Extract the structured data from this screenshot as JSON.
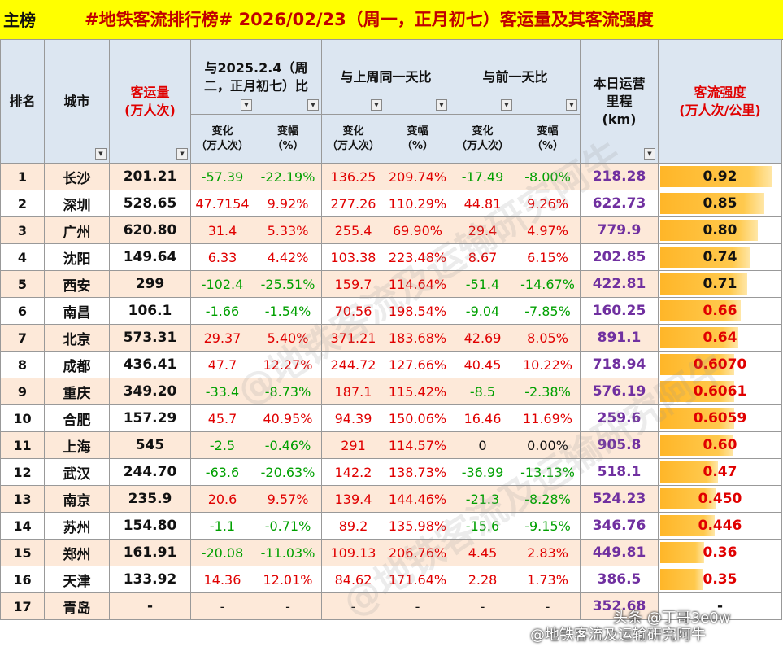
{
  "title_left": "主榜",
  "title_main": "#地铁客流排行榜# 2026/02/23（周一，正月初七）客运量及其客流强度",
  "headers": {
    "rank": "排名",
    "city": "城市",
    "volume": "客运量\n(万人次)",
    "grp_yoy": "与2025.2.4（周\n二，正月初七）比",
    "grp_wow": "与上周同一天比",
    "grp_dod": "与前一天比",
    "mileage": "本日运营\n里程\n(km)",
    "intensity": "客流强度\n(万人次/公里)",
    "change": "变化\n（万人次）",
    "pct": "变幅\n（%）"
  },
  "rows": [
    {
      "rank": "1",
      "city": "长沙",
      "volume": "201.21",
      "yoy_c": "-57.39",
      "yoy_p": "-22.19%",
      "wow_c": "136.25",
      "wow_p": "209.74%",
      "dod_c": "-17.49",
      "dod_p": "-8.00%",
      "mileage": "218.28",
      "intensity": "0.92",
      "ival": 0.92
    },
    {
      "rank": "2",
      "city": "深圳",
      "volume": "528.65",
      "yoy_c": "47.7154",
      "yoy_p": "9.92%",
      "wow_c": "277.26",
      "wow_p": "110.29%",
      "dod_c": "44.81",
      "dod_p": "9.26%",
      "mileage": "622.73",
      "intensity": "0.85",
      "ival": 0.85
    },
    {
      "rank": "3",
      "city": "广州",
      "volume": "620.80",
      "yoy_c": "31.4",
      "yoy_p": "5.33%",
      "wow_c": "255.4",
      "wow_p": "69.90%",
      "dod_c": "29.4",
      "dod_p": "4.97%",
      "mileage": "779.9",
      "intensity": "0.80",
      "ival": 0.8
    },
    {
      "rank": "4",
      "city": "沈阳",
      "volume": "149.64",
      "yoy_c": "6.33",
      "yoy_p": "4.42%",
      "wow_c": "103.38",
      "wow_p": "223.48%",
      "dod_c": "8.67",
      "dod_p": "6.15%",
      "mileage": "202.85",
      "intensity": "0.74",
      "ival": 0.74
    },
    {
      "rank": "5",
      "city": "西安",
      "volume": "299",
      "yoy_c": "-102.4",
      "yoy_p": "-25.51%",
      "wow_c": "159.7",
      "wow_p": "114.64%",
      "dod_c": "-51.4",
      "dod_p": "-14.67%",
      "mileage": "422.81",
      "intensity": "0.71",
      "ival": 0.71
    },
    {
      "rank": "6",
      "city": "南昌",
      "volume": "106.1",
      "yoy_c": "-1.66",
      "yoy_p": "-1.54%",
      "wow_c": "70.56",
      "wow_p": "198.54%",
      "dod_c": "-9.04",
      "dod_p": "-7.85%",
      "mileage": "160.25",
      "intensity": "0.66",
      "ival": 0.66
    },
    {
      "rank": "7",
      "city": "北京",
      "volume": "573.31",
      "yoy_c": "29.37",
      "yoy_p": "5.40%",
      "wow_c": "371.21",
      "wow_p": "183.68%",
      "dod_c": "42.69",
      "dod_p": "8.05%",
      "mileage": "891.1",
      "intensity": "0.64",
      "ival": 0.64
    },
    {
      "rank": "8",
      "city": "成都",
      "volume": "436.41",
      "yoy_c": "47.7",
      "yoy_p": "12.27%",
      "wow_c": "244.72",
      "wow_p": "127.66%",
      "dod_c": "40.45",
      "dod_p": "10.22%",
      "mileage": "718.94",
      "intensity": "0.6070",
      "ival": 0.607
    },
    {
      "rank": "9",
      "city": "重庆",
      "volume": "349.20",
      "yoy_c": "-33.4",
      "yoy_p": "-8.73%",
      "wow_c": "187.1",
      "wow_p": "115.42%",
      "dod_c": "-8.5",
      "dod_p": "-2.38%",
      "mileage": "576.19",
      "intensity": "0.6061",
      "ival": 0.6061
    },
    {
      "rank": "10",
      "city": "合肥",
      "volume": "157.29",
      "yoy_c": "45.7",
      "yoy_p": "40.95%",
      "wow_c": "94.39",
      "wow_p": "150.06%",
      "dod_c": "16.46",
      "dod_p": "11.69%",
      "mileage": "259.6",
      "intensity": "0.6059",
      "ival": 0.6059
    },
    {
      "rank": "11",
      "city": "上海",
      "volume": "545",
      "yoy_c": "-2.5",
      "yoy_p": "-0.46%",
      "wow_c": "291",
      "wow_p": "114.57%",
      "dod_c": "0",
      "dod_p": "0.00%",
      "mileage": "905.8",
      "intensity": "0.60",
      "ival": 0.6
    },
    {
      "rank": "12",
      "city": "武汉",
      "volume": "244.70",
      "yoy_c": "-63.6",
      "yoy_p": "-20.63%",
      "wow_c": "142.2",
      "wow_p": "138.73%",
      "dod_c": "-36.99",
      "dod_p": "-13.13%",
      "mileage": "518.1",
      "intensity": "0.47",
      "ival": 0.47
    },
    {
      "rank": "13",
      "city": "南京",
      "volume": "235.9",
      "yoy_c": "20.6",
      "yoy_p": "9.57%",
      "wow_c": "139.4",
      "wow_p": "144.46%",
      "dod_c": "-21.3",
      "dod_p": "-8.28%",
      "mileage": "524.23",
      "intensity": "0.450",
      "ival": 0.45
    },
    {
      "rank": "14",
      "city": "苏州",
      "volume": "154.80",
      "yoy_c": "-1.1",
      "yoy_p": "-0.71%",
      "wow_c": "89.2",
      "wow_p": "135.98%",
      "dod_c": "-15.6",
      "dod_p": "-9.15%",
      "mileage": "346.76",
      "intensity": "0.446",
      "ival": 0.446
    },
    {
      "rank": "15",
      "city": "郑州",
      "volume": "161.91",
      "yoy_c": "-20.08",
      "yoy_p": "-11.03%",
      "wow_c": "109.13",
      "wow_p": "206.76%",
      "dod_c": "4.45",
      "dod_p": "2.83%",
      "mileage": "449.81",
      "intensity": "0.36",
      "ival": 0.36
    },
    {
      "rank": "16",
      "city": "天津",
      "volume": "133.92",
      "yoy_c": "14.36",
      "yoy_p": "12.01%",
      "wow_c": "84.62",
      "wow_p": "171.64%",
      "dod_c": "2.28",
      "dod_p": "1.73%",
      "mileage": "386.5",
      "intensity": "0.35",
      "ival": 0.35
    },
    {
      "rank": "17",
      "city": "青岛",
      "volume": "-",
      "yoy_c": "-",
      "yoy_p": "-",
      "wow_c": "-",
      "wow_p": "-",
      "dod_c": "-",
      "dod_p": "-",
      "mileage": "352.68",
      "intensity": "-",
      "ival": 0
    }
  ],
  "watermark": "@地铁客流及运输研究阿牛",
  "footer_source": "头条 @丁哥3e0w",
  "footer_account": "@地铁客流及运输研究阿牛",
  "colors": {
    "increase": "#e00000",
    "decrease": "#00a000",
    "mileage": "#7030a0",
    "intensity_bar": "#ffb628",
    "title_bg": "#ffff00"
  },
  "filter_icon": "dropdown-filter-icon"
}
